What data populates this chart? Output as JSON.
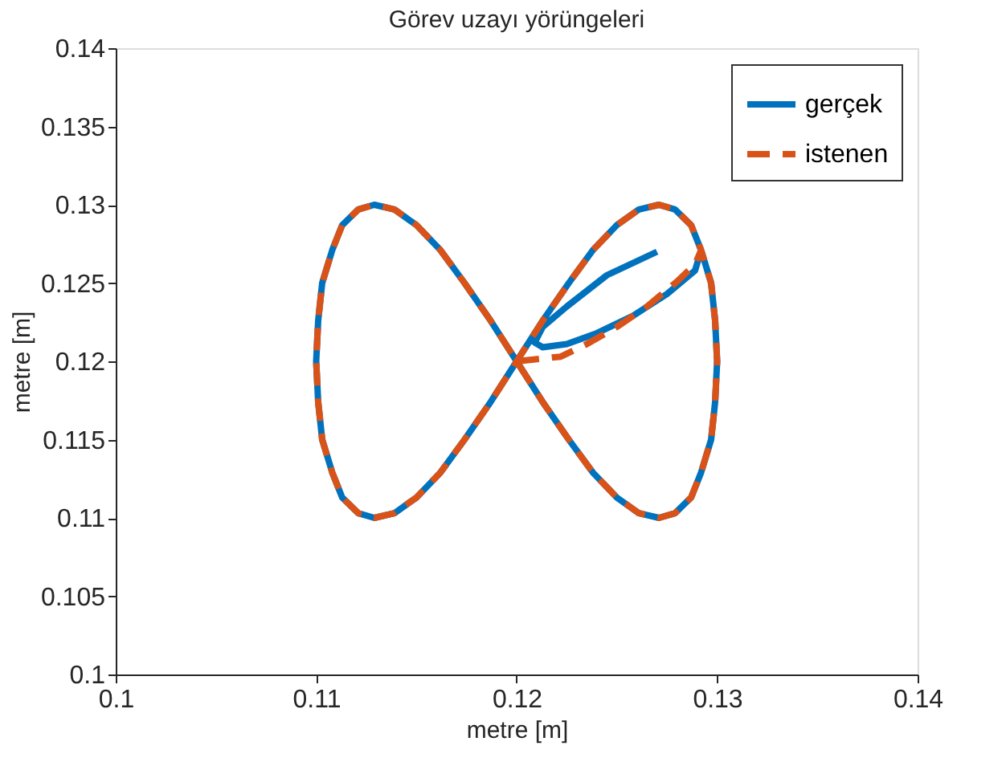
{
  "chart_data": {
    "type": "line",
    "title": "Görev uzayı yörüngeleri",
    "xlabel": "metre [m]",
    "ylabel": "metre [m]",
    "xlim": [
      0.1,
      0.14
    ],
    "ylim": [
      0.1,
      0.14
    ],
    "xticks": [
      0.1,
      0.11,
      0.12,
      0.13,
      0.14
    ],
    "yticks": [
      0.1,
      0.105,
      0.11,
      0.115,
      0.12,
      0.125,
      0.13,
      0.135,
      0.14
    ],
    "grid": false,
    "legend": "top right",
    "marker": "none",
    "series": [
      {
        "name": "gerçek",
        "color": "#0072bd",
        "line_style": "solid",
        "x": [
          0.127,
          0.1245,
          0.1225,
          0.1213,
          0.1209,
          0.1213,
          0.1225,
          0.124,
          0.1258,
          0.1275,
          0.1289,
          0.1292,
          0.1297,
          0.1299,
          0.13,
          0.1299,
          0.1297,
          0.1292,
          0.1287,
          0.1279,
          0.1271,
          0.1261,
          0.125,
          0.1238,
          0.1226,
          0.1213,
          0.12,
          0.1187,
          0.1174,
          0.1162,
          0.115,
          0.1139,
          0.1129,
          0.1121,
          0.1113,
          0.1108,
          0.1103,
          0.1101,
          0.11,
          0.1101,
          0.1103,
          0.1108,
          0.1113,
          0.1121,
          0.1129,
          0.1139,
          0.115,
          0.1162,
          0.1174,
          0.1187,
          0.12,
          0.1213,
          0.1226,
          0.1238,
          0.125,
          0.1261,
          0.1271,
          0.1279,
          0.1287,
          0.1292
        ],
        "values": [
          0.127,
          0.1255,
          0.1235,
          0.1222,
          0.1212,
          0.1209,
          0.1211,
          0.1218,
          0.1229,
          0.1243,
          0.1258,
          0.1271,
          0.125,
          0.1226,
          0.12,
          0.1174,
          0.115,
          0.1129,
          0.1113,
          0.1103,
          0.11,
          0.1103,
          0.1113,
          0.1129,
          0.115,
          0.1174,
          0.12,
          0.1226,
          0.125,
          0.1271,
          0.1287,
          0.1297,
          0.13,
          0.1297,
          0.1287,
          0.1271,
          0.125,
          0.1226,
          0.12,
          0.1174,
          0.115,
          0.1129,
          0.1113,
          0.1103,
          0.11,
          0.1103,
          0.1113,
          0.1129,
          0.115,
          0.1174,
          0.12,
          0.1226,
          0.125,
          0.1271,
          0.1287,
          0.1297,
          0.13,
          0.1297,
          0.1287,
          0.1271
        ]
      },
      {
        "name": "istenen",
        "color": "#d95319",
        "line_style": "dashed",
        "x": [
          0.12,
          0.1222,
          0.1235,
          0.125,
          0.1265,
          0.128,
          0.1289,
          0.1292,
          0.1297,
          0.1299,
          0.13,
          0.1299,
          0.1297,
          0.1292,
          0.1287,
          0.1279,
          0.1271,
          0.1261,
          0.125,
          0.1238,
          0.1226,
          0.1213,
          0.12,
          0.1187,
          0.1174,
          0.1162,
          0.115,
          0.1139,
          0.1129,
          0.1121,
          0.1113,
          0.1108,
          0.1103,
          0.1101,
          0.11,
          0.1101,
          0.1103,
          0.1108,
          0.1113,
          0.1121,
          0.1129,
          0.1139,
          0.115,
          0.1162,
          0.1174,
          0.1187,
          0.12,
          0.1213,
          0.1226,
          0.1238,
          0.125,
          0.1261,
          0.1271,
          0.1279,
          0.1287,
          0.1292
        ],
        "values": [
          0.12,
          0.1203,
          0.1211,
          0.1222,
          0.1235,
          0.1251,
          0.1262,
          0.1271,
          0.125,
          0.1226,
          0.12,
          0.1174,
          0.115,
          0.1129,
          0.1113,
          0.1103,
          0.11,
          0.1103,
          0.1113,
          0.1129,
          0.115,
          0.1174,
          0.12,
          0.1226,
          0.125,
          0.1271,
          0.1287,
          0.1297,
          0.13,
          0.1297,
          0.1287,
          0.1271,
          0.125,
          0.1226,
          0.12,
          0.1174,
          0.115,
          0.1129,
          0.1113,
          0.1103,
          0.11,
          0.1103,
          0.1113,
          0.1129,
          0.115,
          0.1174,
          0.12,
          0.1226,
          0.125,
          0.1271,
          0.1287,
          0.1297,
          0.13,
          0.1297,
          0.1287,
          0.1271
        ]
      }
    ]
  }
}
